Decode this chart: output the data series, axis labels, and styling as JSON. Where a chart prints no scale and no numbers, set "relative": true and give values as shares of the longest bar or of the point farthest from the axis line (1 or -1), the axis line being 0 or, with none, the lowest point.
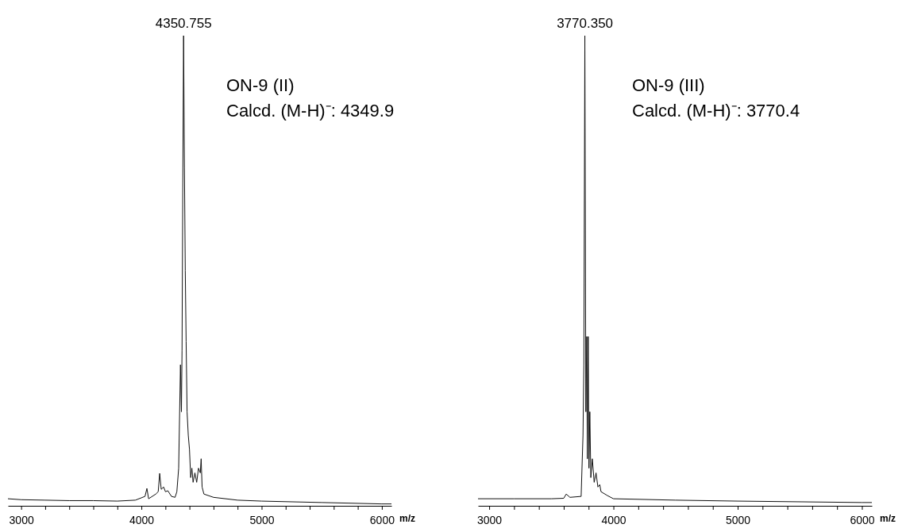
{
  "chart_data": [
    {
      "type": "line",
      "relative": true,
      "xlabel": "m/z",
      "xlim": [
        2890,
        6080
      ],
      "xticks": [
        3000,
        {
          "value": 3200,
          "label": null
        },
        {
          "value": 3400,
          "label": null
        },
        {
          "value": 3600,
          "label": null
        },
        {
          "value": 3800,
          "label": null
        },
        4000,
        {
          "value": 4200,
          "label": null
        },
        {
          "value": 4400,
          "label": null
        },
        {
          "value": 4600,
          "label": null
        },
        {
          "value": 4800,
          "label": null
        },
        5000,
        {
          "value": 5200,
          "label": null
        },
        {
          "value": 5400,
          "label": null
        },
        {
          "value": 5600,
          "label": null
        },
        {
          "value": 5800,
          "label": null
        },
        6000
      ],
      "annotations": [
        {
          "text": "4350.755",
          "x": 4350.755,
          "y": 1
        },
        "ON-9 (II)",
        "Calcd. (M-H)⁻: 4349.9"
      ],
      "series": [
        {
          "color": "#111111",
          "x": [
            2890,
            3000,
            3200,
            3400,
            3600,
            3800,
            3950,
            4030,
            4046,
            4060,
            4120,
            4140,
            4152,
            4165,
            4185,
            4200,
            4220,
            4250,
            4280,
            4295,
            4310,
            4325,
            4333,
            4338,
            4345,
            4351,
            4358,
            4365,
            4372,
            4380,
            4390,
            4400,
            4410,
            4420,
            4430,
            4445,
            4460,
            4475,
            4490,
            4497,
            4505,
            4520,
            4600,
            4800,
            5000,
            5500,
            6000,
            6080
          ],
          "values": [
            0.015,
            0.013,
            0.012,
            0.011,
            0.011,
            0.01,
            0.012,
            0.02,
            0.037,
            0.015,
            0.025,
            0.03,
            0.069,
            0.035,
            0.04,
            0.03,
            0.032,
            0.02,
            0.018,
            0.03,
            0.08,
            0.3,
            0.2,
            0.33,
            0.72,
            1.0,
            0.72,
            0.5,
            0.35,
            0.2,
            0.15,
            0.12,
            0.06,
            0.08,
            0.05,
            0.07,
            0.05,
            0.08,
            0.07,
            0.1,
            0.04,
            0.025,
            0.018,
            0.012,
            0.01,
            0.007,
            0.004,
            0.004
          ]
        }
      ]
    },
    {
      "type": "line",
      "relative": true,
      "xlabel": "m/z",
      "xlim": [
        2910,
        6080
      ],
      "xticks": [
        3000,
        {
          "value": 3200,
          "label": null
        },
        {
          "value": 3400,
          "label": null
        },
        {
          "value": 3600,
          "label": null
        },
        {
          "value": 3800,
          "label": null
        },
        4000,
        {
          "value": 4200,
          "label": null
        },
        {
          "value": 4400,
          "label": null
        },
        {
          "value": 4600,
          "label": null
        },
        {
          "value": 4800,
          "label": null
        },
        5000,
        {
          "value": 5200,
          "label": null
        },
        {
          "value": 5400,
          "label": null
        },
        {
          "value": 5600,
          "label": null
        },
        {
          "value": 5800,
          "label": null
        },
        6000
      ],
      "annotations": [
        {
          "text": "3770.350",
          "x": 3770.35,
          "y": 1
        },
        "ON-9 (III)",
        "Calcd. (M-H)⁻: 3770.4"
      ],
      "series": [
        {
          "color": "#111111",
          "x": [
            2910,
            3200,
            3500,
            3600,
            3620,
            3650,
            3740,
            3755,
            3762,
            3770,
            3778,
            3785,
            3790,
            3797,
            3803,
            3810,
            3818,
            3830,
            3845,
            3860,
            3875,
            3890,
            3900,
            3950,
            4000,
            4500,
            5000,
            6000,
            6080
          ],
          "values": [
            0.015,
            0.015,
            0.015,
            0.016,
            0.025,
            0.018,
            0.02,
            0.15,
            0.3,
            1.0,
            0.2,
            0.36,
            0.1,
            0.36,
            0.08,
            0.2,
            0.06,
            0.1,
            0.05,
            0.07,
            0.04,
            0.045,
            0.03,
            0.022,
            0.015,
            0.012,
            0.01,
            0.007,
            0.007
          ]
        }
      ]
    }
  ]
}
